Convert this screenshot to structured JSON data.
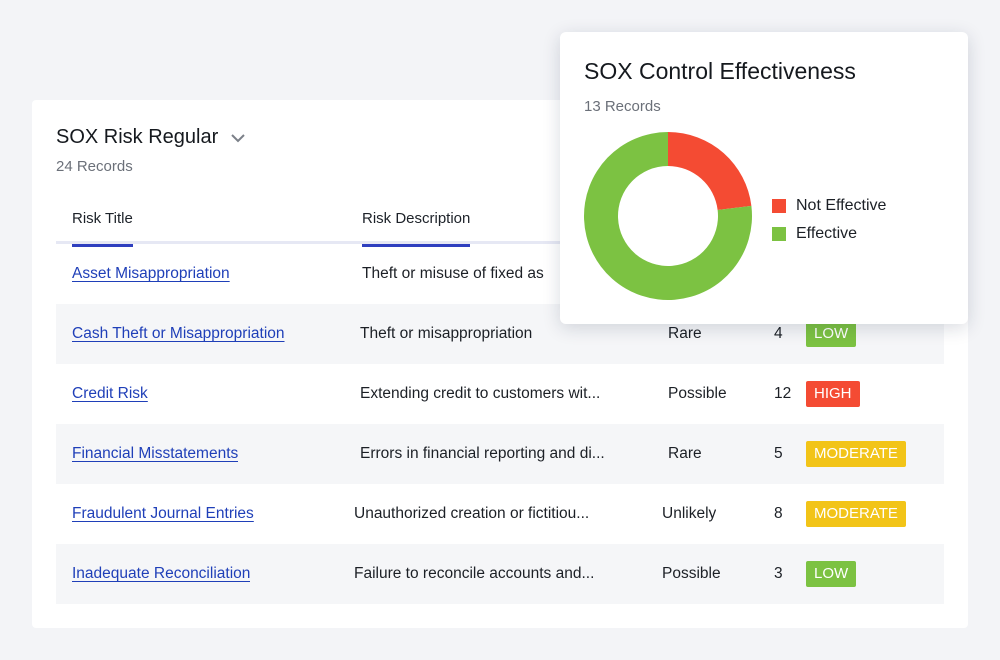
{
  "colors": {
    "link": "#1f3fb8",
    "high": "#f44b33",
    "moderate": "#f2c418",
    "low": "#7cc242",
    "tab_underline": "#2f3fbf"
  },
  "table": {
    "title": "SOX Risk Regular",
    "subtitle": "24 Records",
    "columns": [
      "Risk Title",
      "Risk Description"
    ],
    "rows": [
      {
        "title": "Asset Misappropriation",
        "description": "Theft or misuse of fixed as",
        "likelihood": "",
        "score": "",
        "rating": "",
        "rating_color": ""
      },
      {
        "title": "Cash Theft or Misappropriation",
        "description": "Theft or misappropriation",
        "likelihood": "Rare",
        "score": "4",
        "rating": "LOW",
        "rating_color": "#7cc242"
      },
      {
        "title": "Credit Risk",
        "description": "Extending credit to customers wit...",
        "likelihood": "Possible",
        "score": "12",
        "rating": "HIGH",
        "rating_color": "#f44b33"
      },
      {
        "title": "Financial Misstatements",
        "description": "Errors in financial reporting and di...",
        "likelihood": "Rare",
        "score": "5",
        "rating": "MODERATE",
        "rating_color": "#f2c418"
      },
      {
        "title": "Fraudulent Journal Entries",
        "description": "Unauthorized creation or fictitiou...",
        "likelihood": "Unlikely",
        "score": "8",
        "rating": "MODERATE",
        "rating_color": "#f2c418"
      },
      {
        "title": "Inadequate Reconciliation",
        "description": "Failure to reconcile accounts and...",
        "likelihood": "Possible",
        "score": "3",
        "rating": "LOW",
        "rating_color": "#7cc242"
      }
    ]
  },
  "chart_data": {
    "type": "pie",
    "title": "SOX Control Effectiveness",
    "subtitle": "13 Records",
    "categories": [
      "Not Effective",
      "Effective"
    ],
    "values": [
      3,
      10
    ],
    "colors": [
      "#f44b33",
      "#7cc242"
    ],
    "legend": "right"
  }
}
